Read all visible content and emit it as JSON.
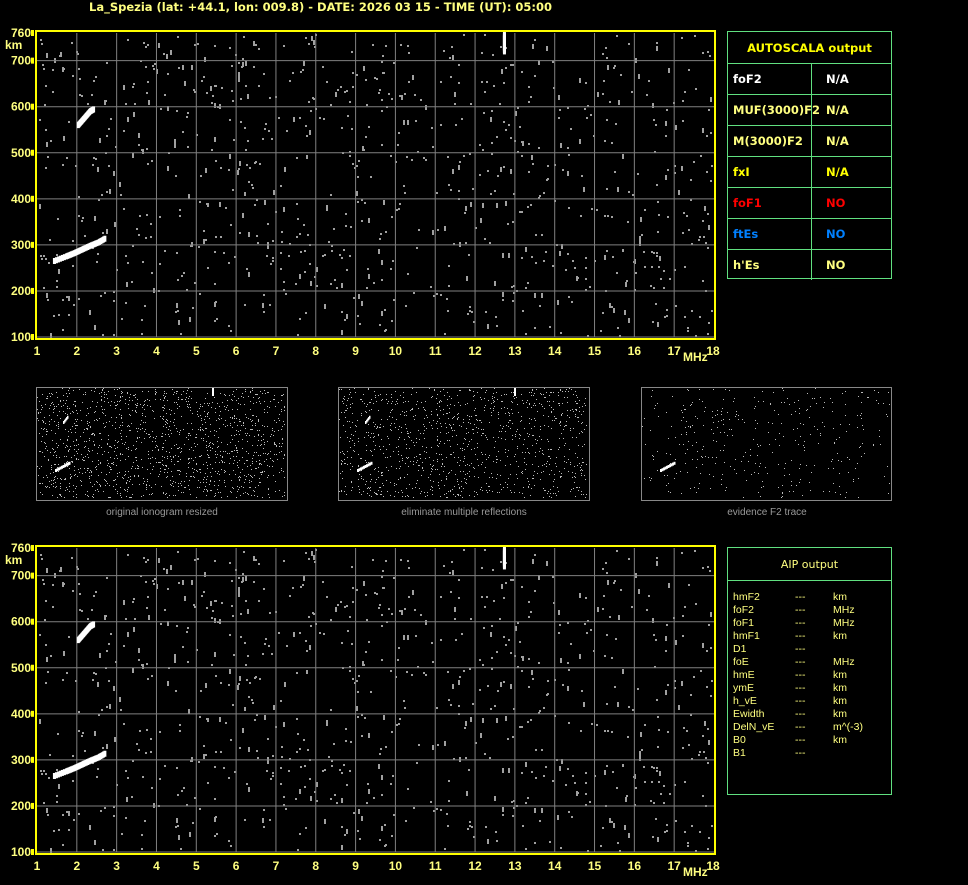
{
  "header": {
    "title": "La_Spezia (lat: +44.1, lon: 009.8) - DATE: 2026 03 15 - TIME (UT): 05:00"
  },
  "colors": {
    "axis": "#ffff00",
    "grid": "#808080",
    "trace": "#ffffff",
    "noise": "#a0a0a0",
    "table_border": "#60e080",
    "foF1": "#ff0000",
    "ftEs": "#0080ff"
  },
  "chart_data": {
    "type": "scatter",
    "title": "",
    "xlabel": "MHz",
    "ylabel": "km",
    "xlim": [
      1,
      18
    ],
    "ylim": [
      100,
      760
    ],
    "x_ticks": [
      "1",
      "2",
      "3",
      "4",
      "5",
      "6",
      "7",
      "8",
      "9",
      "10",
      "11",
      "12",
      "13",
      "14",
      "15",
      "16",
      "17",
      "18"
    ],
    "y_ticks": [
      "100",
      "200",
      "300",
      "400",
      "500",
      "600",
      "700",
      "760"
    ],
    "grid": true,
    "traces": [
      {
        "points": [
          [
            1.4,
            265
          ],
          [
            1.7,
            275
          ],
          [
            1.9,
            282
          ],
          [
            2.1,
            290
          ],
          [
            2.3,
            298
          ],
          [
            2.5,
            305
          ],
          [
            2.7,
            315
          ]
        ]
      },
      {
        "points": [
          [
            2.0,
            560
          ],
          [
            2.1,
            570
          ],
          [
            2.2,
            580
          ],
          [
            2.3,
            590
          ],
          [
            2.4,
            595
          ]
        ]
      },
      {
        "points": [
          [
            12.7,
            720
          ],
          [
            12.7,
            740
          ],
          [
            12.7,
            760
          ]
        ]
      }
    ]
  },
  "autoscala": {
    "title": "AUTOSCALA output",
    "rows": [
      {
        "label": "foF2",
        "value": "N/A",
        "color": "#ffffff"
      },
      {
        "label": "MUF(3000)F2",
        "value": "N/A",
        "color": "#ffff80"
      },
      {
        "label": "M(3000)F2",
        "value": "N/A",
        "color": "#ffff80"
      },
      {
        "label": "fxI",
        "value": "N/A",
        "color": "#ffff00"
      },
      {
        "label": "foF1",
        "value": "NO",
        "color": "#ff0000"
      },
      {
        "label": "ftEs",
        "value": "NO",
        "color": "#0080ff"
      },
      {
        "label": "h'Es",
        "value": "NO",
        "color": "#ffff80"
      }
    ]
  },
  "thumbnails": [
    {
      "caption": "original ionogram resized"
    },
    {
      "caption": "eliminate multiple reflections"
    },
    {
      "caption": "evidence F2 trace"
    }
  ],
  "aip": {
    "title": "AIP output",
    "rows": [
      {
        "label": "hmF2",
        "value": "---",
        "unit": "km"
      },
      {
        "label": "foF2",
        "value": "---",
        "unit": "MHz"
      },
      {
        "label": "foF1",
        "value": "---",
        "unit": "MHz"
      },
      {
        "label": "hmF1",
        "value": "---",
        "unit": "km"
      },
      {
        "label": "D1",
        "value": "---",
        "unit": ""
      },
      {
        "label": "foE",
        "value": "---",
        "unit": "MHz"
      },
      {
        "label": "hmE",
        "value": "---",
        "unit": "km"
      },
      {
        "label": "ymE",
        "value": "---",
        "unit": "km"
      },
      {
        "label": "h_vE",
        "value": "---",
        "unit": "km"
      },
      {
        "label": "Ewidth",
        "value": "---",
        "unit": "km"
      },
      {
        "label": "DelN_vE",
        "value": "---",
        "unit": "m^(-3)"
      },
      {
        "label": "B0",
        "value": "---",
        "unit": "km"
      },
      {
        "label": "B1",
        "value": "---",
        "unit": ""
      }
    ]
  }
}
